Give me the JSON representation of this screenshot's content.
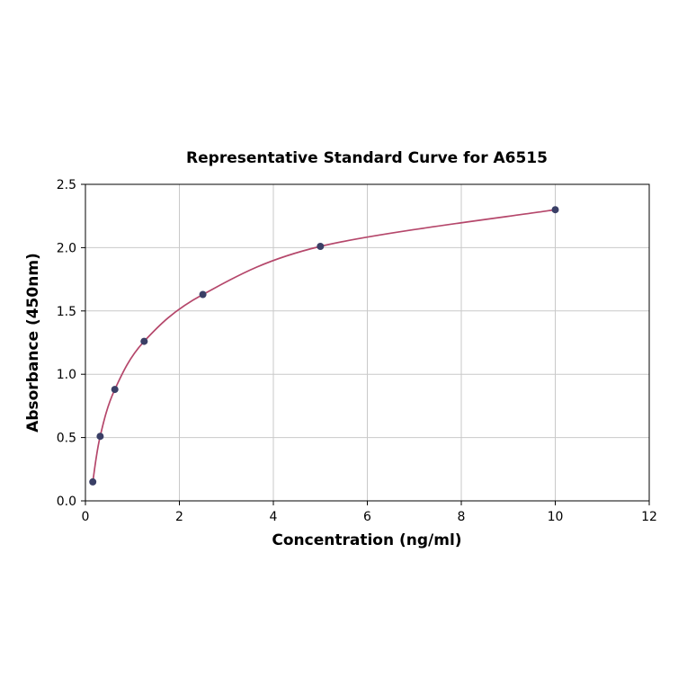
{
  "chart": {
    "title": "Representative Standard Curve for A6515",
    "xlabel": "Concentration (ng/ml)",
    "ylabel": "Absorbance (450nm)"
  },
  "chart_data": {
    "type": "line",
    "title": "Representative Standard Curve for A6515",
    "xlabel": "Concentration (ng/ml)",
    "ylabel": "Absorbance (450nm)",
    "x": [
      0.156,
      0.313,
      0.625,
      1.25,
      2.5,
      5,
      10
    ],
    "y": [
      0.15,
      0.51,
      0.88,
      1.26,
      1.63,
      2.01,
      2.3
    ],
    "xlim": [
      0,
      12
    ],
    "ylim": [
      0,
      2.5
    ],
    "xticks": [
      0,
      2,
      4,
      6,
      8,
      10,
      12
    ],
    "xtick_labels": [
      "0",
      "2",
      "4",
      "6",
      "8",
      "10",
      "12"
    ],
    "yticks": [
      0,
      0.5,
      1,
      1.5,
      2,
      2.5
    ],
    "ytick_labels": [
      "0.0",
      "0.5",
      "1.0",
      "1.5",
      "2.0",
      "2.5"
    ],
    "grid": true,
    "legend": "none",
    "line_color": "#b5476b",
    "marker_color": "#3a3f66",
    "grid_color": "#c9c9c9",
    "axis_color": "#000000",
    "background_color": "#ffffff"
  }
}
